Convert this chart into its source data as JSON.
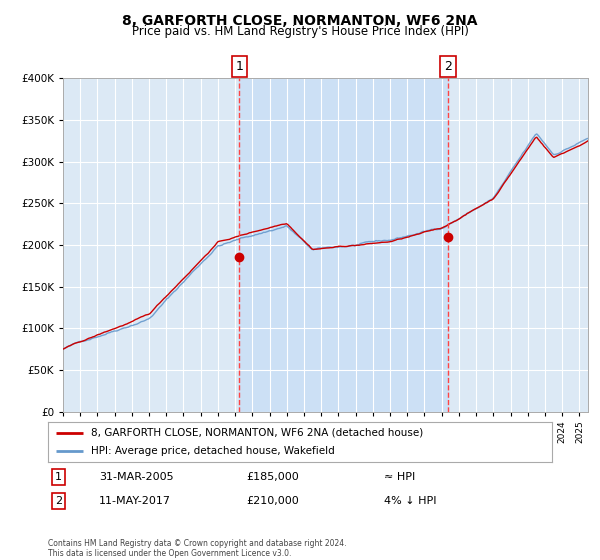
{
  "title": "8, GARFORTH CLOSE, NORMANTON, WF6 2NA",
  "subtitle": "Price paid vs. HM Land Registry's House Price Index (HPI)",
  "legend_line1": "8, GARFORTH CLOSE, NORMANTON, WF6 2NA (detached house)",
  "legend_line2": "HPI: Average price, detached house, Wakefield",
  "annotation1_label": "1",
  "annotation1_date": "31-MAR-2005",
  "annotation1_price": "£185,000",
  "annotation1_hpi": "≈ HPI",
  "annotation1_year": 2005.25,
  "annotation1_value": 185000,
  "annotation2_label": "2",
  "annotation2_date": "11-MAY-2017",
  "annotation2_price": "£210,000",
  "annotation2_hpi": "4% ↓ HPI",
  "annotation2_year": 2017.36,
  "annotation2_value": 210000,
  "background_color": "#ffffff",
  "plot_bg_color": "#dce9f5",
  "owned_region_color": "#cce0f5",
  "grid_color": "#ffffff",
  "hpi_line_color": "#6699cc",
  "price_line_color": "#cc0000",
  "marker_color": "#cc0000",
  "dashed_line_color": "#ff4444",
  "footer_text": "Contains HM Land Registry data © Crown copyright and database right 2024.\nThis data is licensed under the Open Government Licence v3.0.",
  "ylim": [
    0,
    400000
  ],
  "yticks": [
    0,
    50000,
    100000,
    150000,
    200000,
    250000,
    300000,
    350000,
    400000
  ],
  "xlim_start": 1995.0,
  "xlim_end": 2025.5
}
